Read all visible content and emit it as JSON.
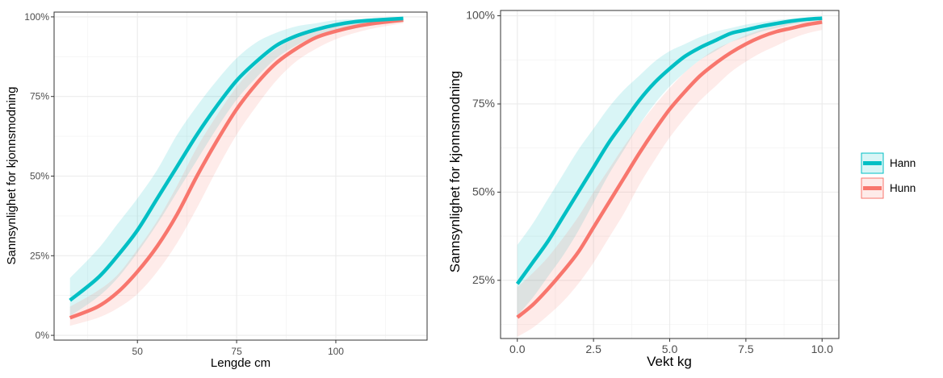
{
  "legend": [
    {
      "label": "Hann",
      "color": "#00BFC4"
    },
    {
      "label": "Hunn",
      "color": "#F8766D"
    }
  ],
  "chart_data": [
    {
      "type": "line",
      "title": "",
      "xlabel": "Lengde cm",
      "ylabel": "Sannsynlighet for kjonnsmodning",
      "xlim": [
        29,
        123
      ],
      "ylim": [
        -0.015,
        1.015
      ],
      "x_ticks": [
        50,
        75,
        100
      ],
      "x_tick_labels": [
        "50",
        "75",
        "100"
      ],
      "y_ticks": [
        0,
        0.25,
        0.5,
        0.75,
        1.0
      ],
      "y_tick_labels": [
        "0%",
        "25%",
        "50%",
        "75%",
        "100%"
      ],
      "grid": true,
      "series": [
        {
          "name": "Hann",
          "color": "#00BFC4",
          "x": [
            33,
            40,
            45,
            50,
            55,
            60,
            65,
            70,
            75,
            80,
            85,
            90,
            95,
            100,
            105,
            110,
            117
          ],
          "y": [
            0.11,
            0.18,
            0.25,
            0.33,
            0.43,
            0.53,
            0.63,
            0.72,
            0.8,
            0.86,
            0.91,
            0.94,
            0.96,
            0.975,
            0.985,
            0.99,
            0.995
          ],
          "lower": [
            0.06,
            0.12,
            0.18,
            0.26,
            0.35,
            0.45,
            0.55,
            0.65,
            0.74,
            0.81,
            0.87,
            0.91,
            0.94,
            0.96,
            0.975,
            0.985,
            0.99
          ],
          "upper": [
            0.18,
            0.27,
            0.35,
            0.43,
            0.52,
            0.63,
            0.72,
            0.8,
            0.87,
            0.92,
            0.95,
            0.97,
            0.98,
            0.99,
            0.993,
            0.996,
            0.999
          ]
        },
        {
          "name": "Hunn",
          "color": "#F8766D",
          "x": [
            33,
            40,
            45,
            50,
            55,
            60,
            65,
            70,
            75,
            80,
            85,
            90,
            95,
            100,
            105,
            110,
            117
          ],
          "y": [
            0.055,
            0.09,
            0.135,
            0.2,
            0.28,
            0.38,
            0.5,
            0.61,
            0.71,
            0.79,
            0.855,
            0.9,
            0.935,
            0.955,
            0.97,
            0.98,
            0.99
          ],
          "lower": [
            0.03,
            0.055,
            0.085,
            0.13,
            0.2,
            0.29,
            0.4,
            0.52,
            0.63,
            0.72,
            0.8,
            0.86,
            0.9,
            0.93,
            0.95,
            0.965,
            0.98
          ],
          "upper": [
            0.09,
            0.14,
            0.19,
            0.27,
            0.36,
            0.47,
            0.59,
            0.69,
            0.78,
            0.85,
            0.9,
            0.935,
            0.96,
            0.97,
            0.98,
            0.99,
            0.995
          ]
        }
      ]
    },
    {
      "type": "line",
      "title": "",
      "xlabel": "Vekt kg",
      "ylabel": "Sannsynlighet for kjonnsmodning",
      "xlim": [
        -0.55,
        10.55
      ],
      "ylim": [
        0.085,
        1.015
      ],
      "x_ticks": [
        0,
        2.5,
        5,
        7.5,
        10
      ],
      "x_tick_labels": [
        "0.0",
        "2.5",
        "5.0",
        "7.5",
        "10.0"
      ],
      "y_ticks": [
        0.25,
        0.5,
        0.75,
        1.0
      ],
      "y_tick_labels": [
        "25%",
        "50%",
        "75%",
        "100%"
      ],
      "grid": true,
      "series": [
        {
          "name": "Hann",
          "color": "#00BFC4",
          "x": [
            0,
            0.5,
            1,
            1.5,
            2,
            2.5,
            3,
            3.5,
            4,
            4.5,
            5,
            5.5,
            6,
            6.5,
            7,
            7.5,
            8,
            8.5,
            9,
            9.5,
            10
          ],
          "y": [
            0.24,
            0.3,
            0.36,
            0.43,
            0.5,
            0.57,
            0.64,
            0.7,
            0.76,
            0.81,
            0.85,
            0.885,
            0.91,
            0.93,
            0.95,
            0.96,
            0.97,
            0.978,
            0.985,
            0.99,
            0.993
          ],
          "lower": [
            0.15,
            0.2,
            0.26,
            0.32,
            0.39,
            0.47,
            0.55,
            0.62,
            0.69,
            0.75,
            0.8,
            0.84,
            0.875,
            0.9,
            0.925,
            0.94,
            0.955,
            0.965,
            0.975,
            0.982,
            0.988
          ],
          "upper": [
            0.35,
            0.41,
            0.48,
            0.55,
            0.62,
            0.68,
            0.74,
            0.79,
            0.83,
            0.87,
            0.9,
            0.92,
            0.94,
            0.955,
            0.965,
            0.975,
            0.982,
            0.988,
            0.992,
            0.995,
            0.997
          ]
        },
        {
          "name": "Hunn",
          "color": "#F8766D",
          "x": [
            0,
            0.5,
            1,
            1.5,
            2,
            2.5,
            3,
            3.5,
            4,
            4.5,
            5,
            5.5,
            6,
            6.5,
            7,
            7.5,
            8,
            8.5,
            9,
            9.5,
            10
          ],
          "y": [
            0.145,
            0.18,
            0.225,
            0.275,
            0.33,
            0.4,
            0.47,
            0.54,
            0.61,
            0.675,
            0.735,
            0.785,
            0.83,
            0.865,
            0.895,
            0.92,
            0.94,
            0.955,
            0.965,
            0.975,
            0.982
          ],
          "lower": [
            0.09,
            0.115,
            0.15,
            0.19,
            0.24,
            0.3,
            0.37,
            0.44,
            0.52,
            0.59,
            0.655,
            0.71,
            0.76,
            0.8,
            0.84,
            0.87,
            0.895,
            0.915,
            0.935,
            0.95,
            0.96
          ],
          "upper": [
            0.23,
            0.27,
            0.315,
            0.37,
            0.43,
            0.5,
            0.565,
            0.63,
            0.69,
            0.745,
            0.795,
            0.84,
            0.875,
            0.905,
            0.925,
            0.945,
            0.96,
            0.972,
            0.98,
            0.986,
            0.99
          ]
        }
      ]
    }
  ]
}
